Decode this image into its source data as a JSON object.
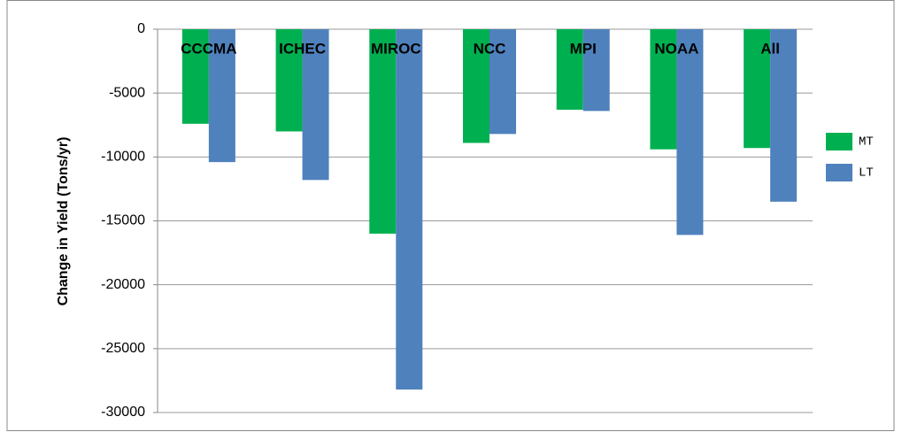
{
  "chart_data": {
    "type": "bar",
    "y_label": "Change in Yield (Tons/yr)",
    "categories": [
      "CCCMA",
      "ICHEC",
      "MIROC",
      "NCC",
      "MPI",
      "NOAA",
      "All"
    ],
    "series": [
      {
        "name": "MT",
        "color": "#00b050",
        "values": [
          -7400,
          -8000,
          -16000,
          -8900,
          -6300,
          -9400,
          -9300
        ]
      },
      {
        "name": "LT",
        "color": "#4f81bd",
        "values": [
          -10400,
          -11800,
          -28200,
          -8200,
          -6400,
          -16100,
          -13500
        ]
      }
    ],
    "ylim": [
      -30000,
      0
    ],
    "yticks": [
      0,
      -5000,
      -10000,
      -15000,
      -20000,
      -25000,
      -30000
    ],
    "grid": true,
    "legend": "right"
  }
}
